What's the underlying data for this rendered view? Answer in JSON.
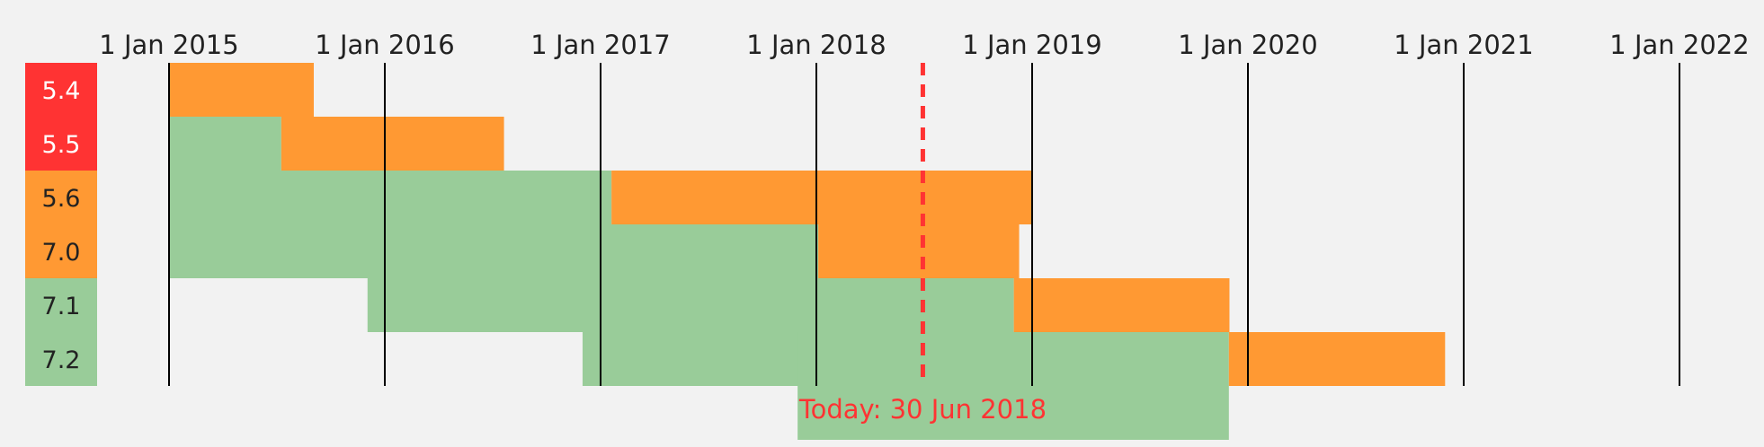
{
  "chart_data": {
    "type": "gantt",
    "title": "",
    "x_ticks": [
      "1 Jan 2015",
      "1 Jan 2016",
      "1 Jan 2017",
      "1 Jan 2018",
      "1 Jan 2019",
      "1 Jan 2020",
      "1 Jan 2021",
      "1 Jan 2022"
    ],
    "x_range": [
      "2014-08-01",
      "2022-01-01"
    ],
    "today": {
      "date": "2018-06-30",
      "label": "Today: 30 Jun 2018"
    },
    "status_colors": {
      "active": "#99cc99",
      "security": "#ff9933",
      "eol": "#ff3333"
    },
    "branches": [
      {
        "label": "5.4",
        "status": "eol",
        "release": "2015-01-01",
        "active_end": "2015-01-01",
        "security_end": "2015-09-03"
      },
      {
        "label": "5.5",
        "status": "eol",
        "release": "2015-01-01",
        "active_end": "2015-07-10",
        "security_end": "2016-07-21"
      },
      {
        "label": "5.6",
        "status": "security",
        "release": "2015-01-01",
        "active_end": "2017-01-19",
        "security_end": "2019-01-01"
      },
      {
        "label": "7.0",
        "status": "security",
        "release": "2015-12-03",
        "active_end": "2018-01-04",
        "security_end": "2018-12-10"
      },
      {
        "label": "7.1",
        "status": "active",
        "release": "2016-12-01",
        "active_end": "2018-12-01",
        "security_end": "2019-12-01"
      },
      {
        "label": "7.2",
        "status": "active",
        "release": "2017-11-30",
        "active_end": "2019-11-30",
        "security_end": "2020-11-30"
      }
    ]
  }
}
